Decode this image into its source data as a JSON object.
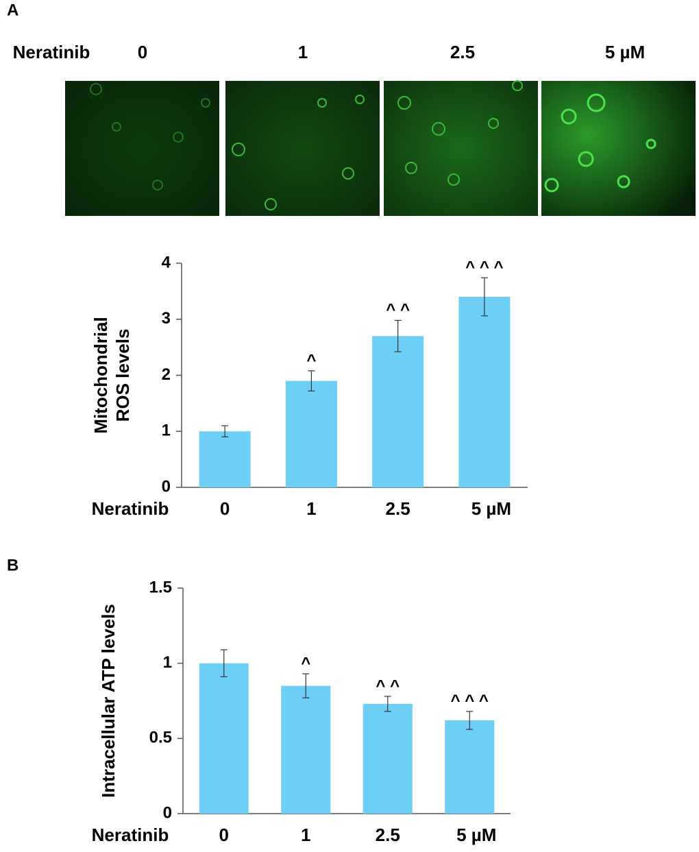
{
  "panel_a": {
    "label": "A",
    "row_label": "Neratinib",
    "columns": [
      "0",
      "1",
      "2.5",
      "5 µM"
    ]
  },
  "panel_b": {
    "label": "B"
  },
  "chart_data": [
    {
      "type": "bar",
      "ylabel": [
        "Mitochondrial",
        "ROS levels"
      ],
      "xlabel": "Neratinib",
      "categories": [
        "0",
        "1",
        "2.5",
        "5 µM"
      ],
      "values": [
        1.0,
        1.9,
        2.7,
        3.4
      ],
      "errors": [
        0.1,
        0.18,
        0.28,
        0.34
      ],
      "annotations": [
        null,
        "^",
        "^ ^",
        "^ ^ ^"
      ],
      "color": "#6dcff6",
      "ylim": [
        0,
        4
      ],
      "yticks": [
        0,
        1,
        2,
        3,
        4
      ]
    },
    {
      "type": "bar",
      "ylabel": "Intracellular ATP levels",
      "xlabel": "Neratinib",
      "categories": [
        "0",
        "1",
        "2.5",
        "5 µM"
      ],
      "values": [
        1.0,
        0.85,
        0.73,
        0.62
      ],
      "errors": [
        0.09,
        0.08,
        0.05,
        0.06
      ],
      "annotations": [
        null,
        "^",
        "^ ^",
        "^ ^ ^"
      ],
      "color": "#6dcff6",
      "ylim": [
        0,
        1.5
      ],
      "yticks": [
        0,
        0.5,
        1,
        1.5
      ]
    }
  ]
}
